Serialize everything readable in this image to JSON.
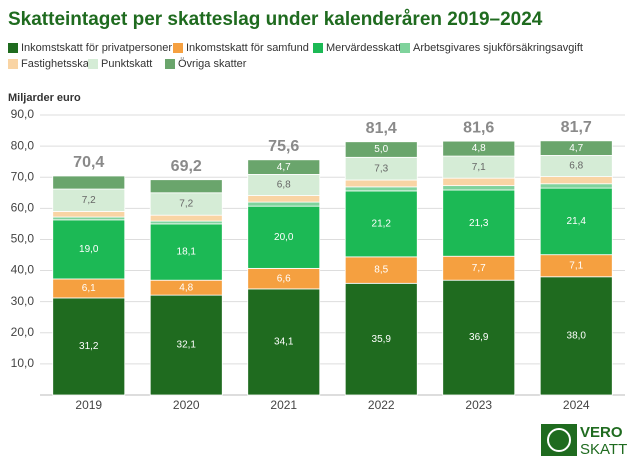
{
  "chart_data": {
    "type": "stacked-bar",
    "title": "Skatteintaget per skatteslag under kalenderåren 2019–2024",
    "y_label": "Miljarder euro",
    "categories": [
      "2019",
      "2020",
      "2021",
      "2022",
      "2023",
      "2024"
    ],
    "series": [
      {
        "name": "Inkomstskatt för privatpersoner",
        "color": "#1f6b1f",
        "values": [
          31.2,
          32.1,
          34.1,
          35.9,
          36.9,
          38.0
        ],
        "value_labels": [
          "31,2",
          "32,1",
          "34,1",
          "35,9",
          "36,9",
          "38,0"
        ]
      },
      {
        "name": "Inkomstskatt för samfund",
        "color": "#f5a040",
        "values": [
          6.1,
          4.8,
          6.6,
          8.5,
          7.7,
          7.1
        ],
        "value_labels": [
          "6,1",
          "4,8",
          "6,6",
          "8,5",
          "7,7",
          "7,1"
        ]
      },
      {
        "name": "Mervärdesskatt",
        "color": "#1cb955",
        "values": [
          19.0,
          18.1,
          20.0,
          21.2,
          21.3,
          21.4
        ],
        "value_labels": [
          "19,0",
          "18,1",
          "20,0",
          "21,2",
          "21,3",
          "21,4"
        ]
      },
      {
        "name": "Arbetsgivares sjukförsäkringsavgift",
        "color": "#7fd39c",
        "values": [
          0.9,
          0.9,
          1.3,
          1.3,
          1.4,
          1.4
        ]
      },
      {
        "name": "Fastighetsskatt",
        "color": "#f9d4a4",
        "values": [
          1.8,
          1.9,
          2.1,
          2.2,
          2.4,
          2.3
        ]
      },
      {
        "name": "Punktskatt",
        "color": "#d5ecd6",
        "values": [
          7.2,
          7.2,
          6.8,
          7.3,
          7.1,
          6.8
        ],
        "value_labels": [
          "7,2",
          "7,2",
          "6,8",
          "7,3",
          "7,1",
          "6,8"
        ]
      },
      {
        "name": "Övriga skatter",
        "color": "#6aa56c",
        "values": [
          4.2,
          4.2,
          4.7,
          5.0,
          4.8,
          4.7
        ],
        "value_labels": [
          null,
          null,
          "4,7",
          "5,0",
          "4,8",
          "4,7"
        ]
      }
    ],
    "totals": [
      70.4,
      69.2,
      75.6,
      81.4,
      81.6,
      81.7
    ],
    "total_labels": [
      "70,4",
      "69,2",
      "75,6",
      "81,4",
      "81,6",
      "81,7"
    ],
    "ylim": [
      0,
      90
    ],
    "yticks": [
      {
        "value": 10,
        "label": "10,0"
      },
      {
        "value": 20,
        "label": "20,0"
      },
      {
        "value": 30,
        "label": "30,0"
      },
      {
        "value": 40,
        "label": "40,0"
      },
      {
        "value": 50,
        "label": "50,0"
      },
      {
        "value": 60,
        "label": "60,0"
      },
      {
        "value": 70,
        "label": "70,0"
      },
      {
        "value": 80,
        "label": "80,0"
      },
      {
        "value": 90,
        "label": "90,0"
      }
    ],
    "grid": true
  },
  "logo": {
    "line1": "VERO",
    "line2": "SKATT"
  }
}
